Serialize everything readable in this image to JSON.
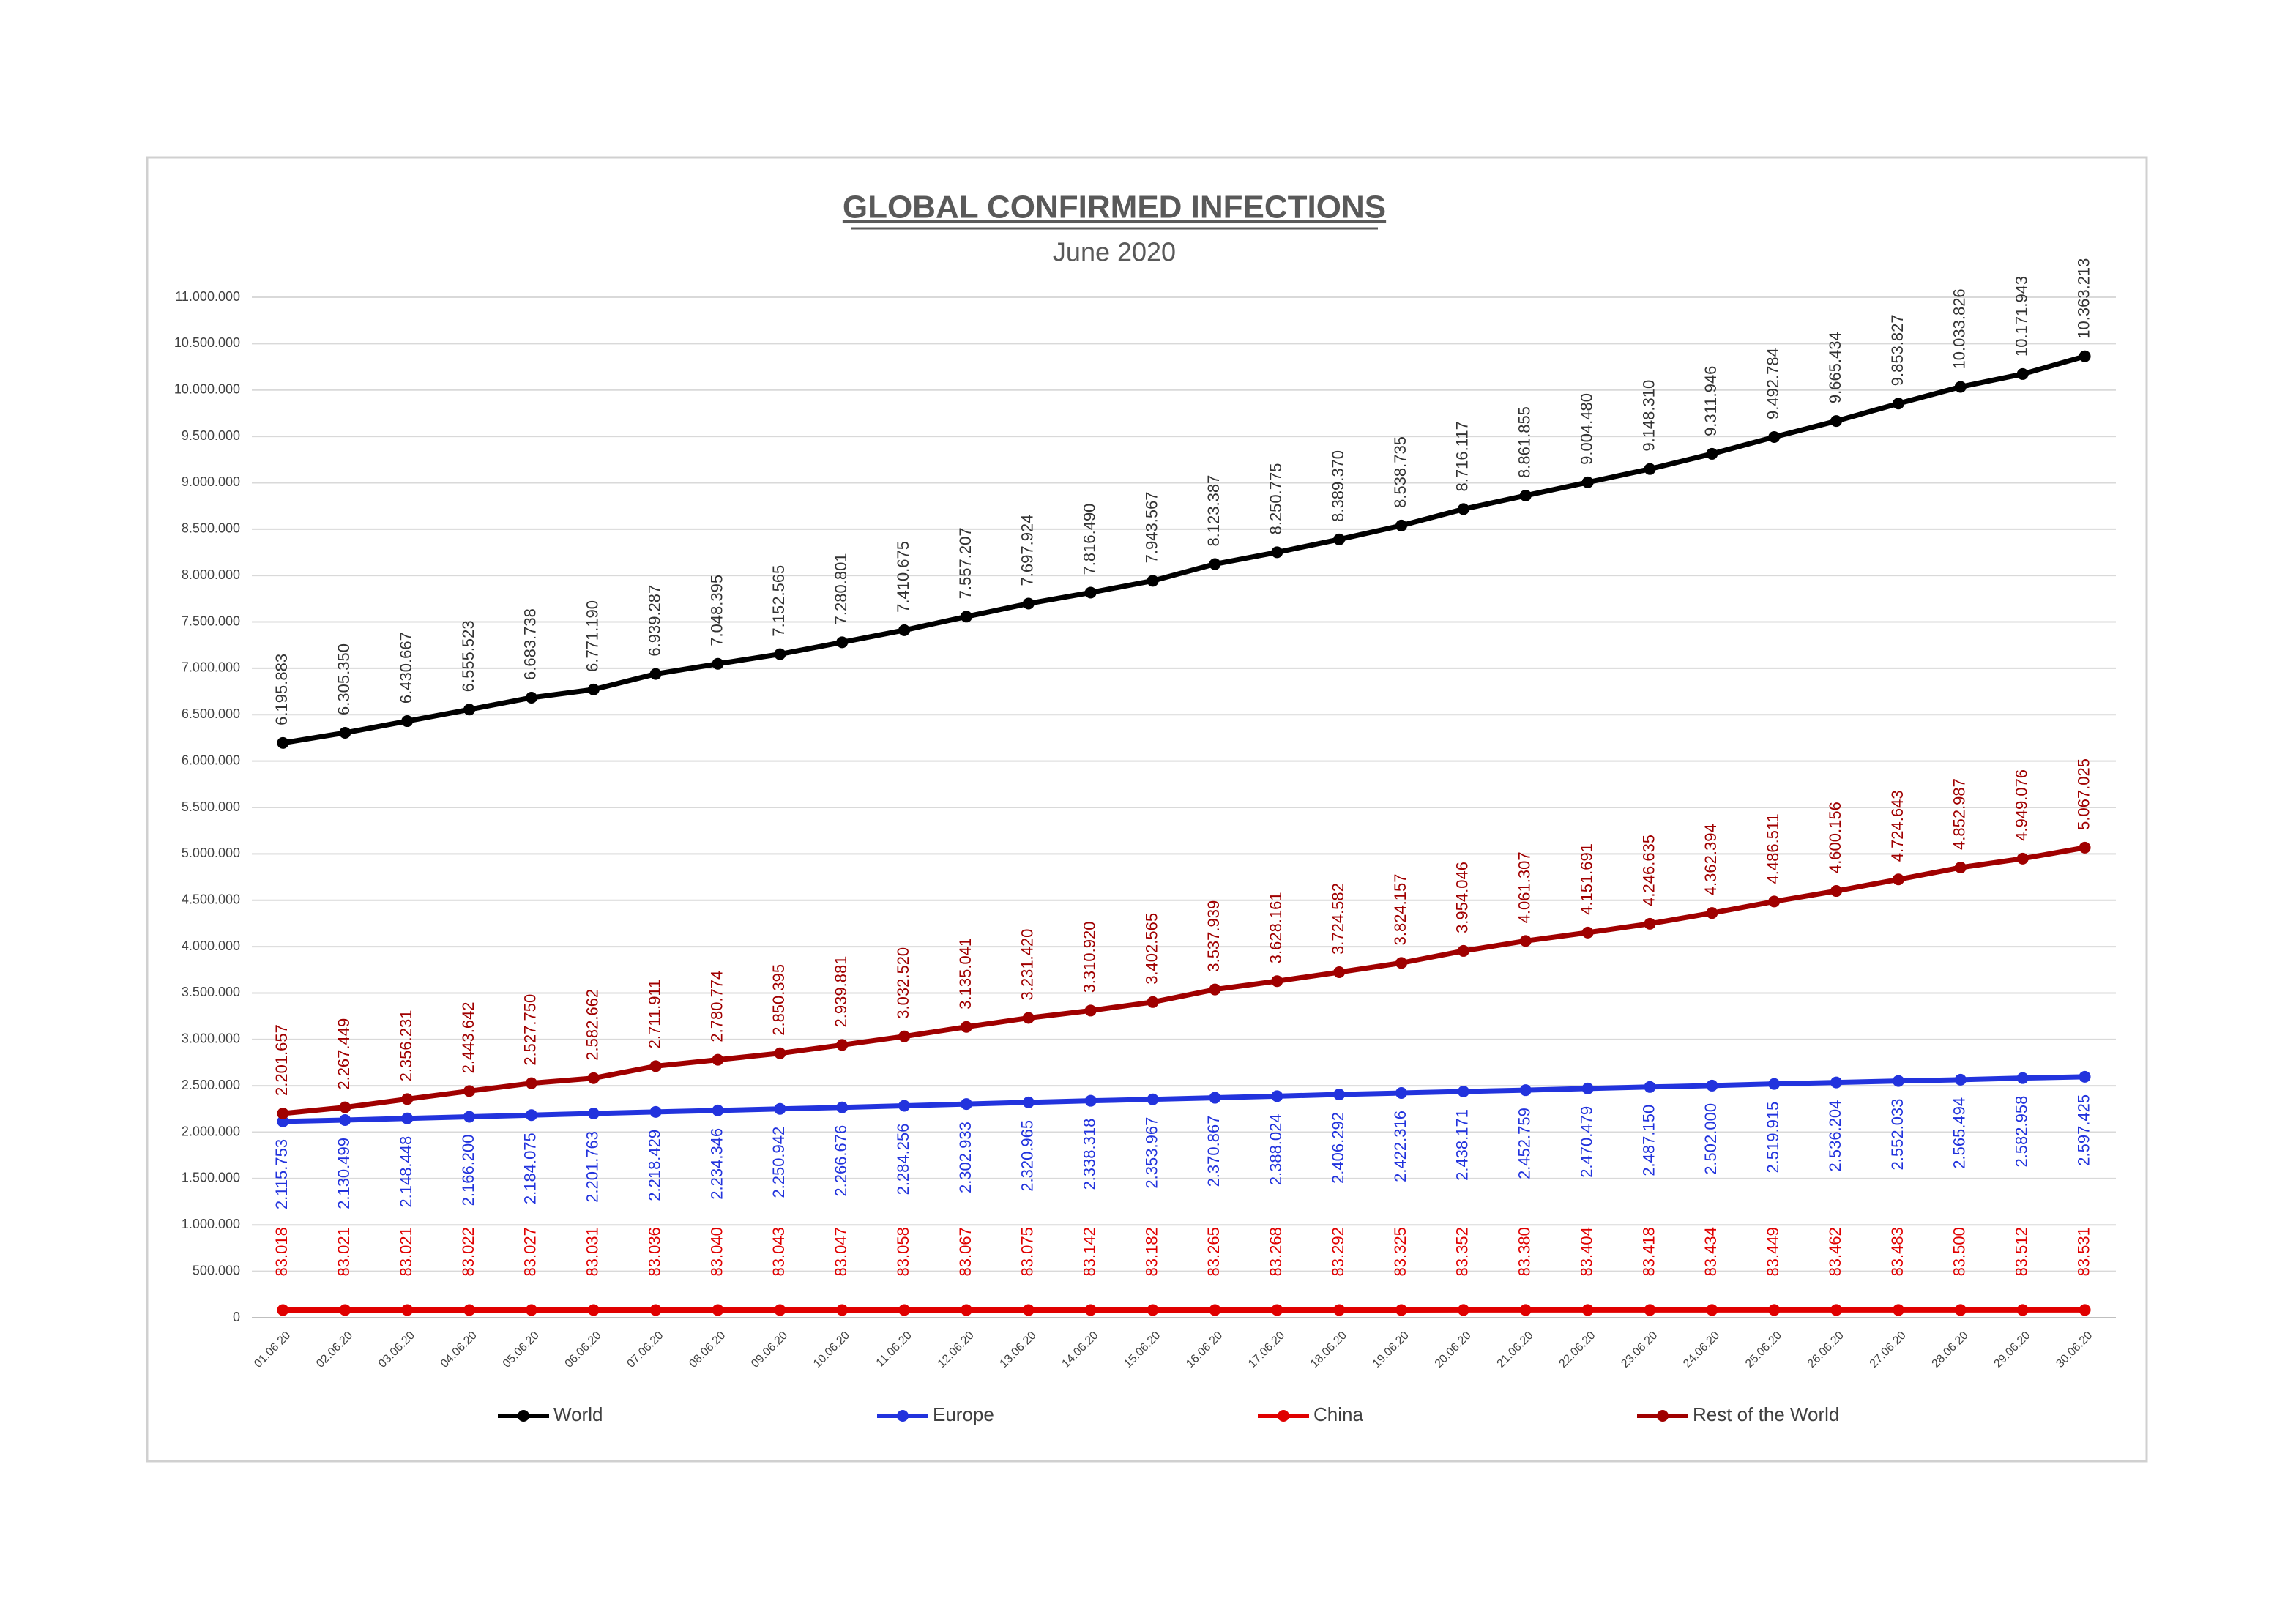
{
  "chart_data": {
    "type": "line",
    "title": "GLOBAL CONFIRMED INFECTIONS",
    "subtitle": "June 2020",
    "categories": [
      "01.06.20",
      "02.06.20",
      "03.06.20",
      "04.06.20",
      "05.06.20",
      "06.06.20",
      "07.06.20",
      "08.06.20",
      "09.06.20",
      "10.06.20",
      "11.06.20",
      "12.06.20",
      "13.06.20",
      "14.06.20",
      "15.06.20",
      "16.06.20",
      "17.06.20",
      "18.06.20",
      "19.06.20",
      "20.06.20",
      "21.06.20",
      "22.06.20",
      "23.06.20",
      "24.06.20",
      "25.06.20",
      "26.06.20",
      "27.06.20",
      "28.06.20",
      "29.06.20",
      "30.06.20"
    ],
    "ylim": [
      0,
      11000000
    ],
    "yticks": [
      0,
      {
        "value": 500000,
        "label": "500.000"
      },
      {
        "value": 1000000,
        "label": "1.000.000"
      },
      {
        "value": 1500000,
        "label": "1.500.000"
      },
      {
        "value": 2000000,
        "label": "2.000.000"
      },
      {
        "value": 2500000,
        "label": "2.500.000"
      },
      {
        "value": 3000000,
        "label": "3.000.000"
      },
      {
        "value": 3500000,
        "label": "3.500.000"
      },
      {
        "value": 4000000,
        "label": "4.000.000"
      },
      {
        "value": 4500000,
        "label": "4.500.000"
      },
      {
        "value": 5000000,
        "label": "5.000.000"
      },
      {
        "value": 5500000,
        "label": "5.500.000"
      },
      {
        "value": 6000000,
        "label": "6.000.000"
      },
      {
        "value": 6500000,
        "label": "6.500.000"
      },
      {
        "value": 7000000,
        "label": "7.000.000"
      },
      {
        "value": 7500000,
        "label": "7.500.000"
      },
      {
        "value": 8000000,
        "label": "8.000.000"
      },
      {
        "value": 8500000,
        "label": "8.500.000"
      },
      {
        "value": 9000000,
        "label": "9.000.000"
      },
      {
        "value": 9500000,
        "label": "9.500.000"
      },
      {
        "value": 10000000,
        "label": "10.000.000"
      },
      {
        "value": 10500000,
        "label": "10.500.000"
      },
      {
        "value": 11000000,
        "label": "11.000.000"
      }
    ],
    "grid": true,
    "legend": "bottom",
    "series": [
      {
        "name": "World",
        "color": "#000000",
        "values": [
          6195883,
          6305350,
          6430667,
          6555523,
          6683738,
          6771190,
          6939287,
          7048395,
          7152565,
          7280801,
          7410675,
          7557207,
          7697924,
          7816490,
          7943567,
          8123387,
          8250775,
          8389370,
          8538735,
          8716117,
          8861855,
          9004480,
          9148310,
          9311946,
          9492784,
          9665434,
          9853827,
          10033826,
          10171943,
          10363213
        ],
        "value_labels": [
          "6.195.883",
          "6.305.350",
          "6.430.667",
          "6.555.523",
          "6.683.738",
          "6.771.190",
          "6.939.287",
          "7.048.395",
          "7.152.565",
          "7.280.801",
          "7.410.675",
          "7.557.207",
          "7.697.924",
          "7.816.490",
          "7.943.567",
          "8.123.387",
          "8.250.775",
          "8.389.370",
          "8.538.735",
          "8.716.117",
          "8.861.855",
          "9.004.480",
          "9.148.310",
          "9.311.946",
          "9.492.784",
          "9.665.434",
          "9.853.827",
          "10.033.826",
          "10.171.943",
          "10.363.213"
        ]
      },
      {
        "name": "Europe",
        "color": "#2233dd",
        "values": [
          2115753,
          2130499,
          2148448,
          2166200,
          2184075,
          2201763,
          2218429,
          2234346,
          2250942,
          2266676,
          2284256,
          2302933,
          2320965,
          2338318,
          2353967,
          2370867,
          2388024,
          2406292,
          2422316,
          2438171,
          2452759,
          2470479,
          2487150,
          2502000,
          2519915,
          2536204,
          2552033,
          2565494,
          2582958,
          2597425
        ],
        "value_labels": [
          "2.115.753",
          "2.130.499",
          "2.148.448",
          "2.166.200",
          "2.184.075",
          "2.201.763",
          "2.218.429",
          "2.234.346",
          "2.250.942",
          "2.266.676",
          "2.284.256",
          "2.302.933",
          "2.320.965",
          "2.338.318",
          "2.353.967",
          "2.370.867",
          "2.388.024",
          "2.406.292",
          "2.422.316",
          "2.438.171",
          "2.452.759",
          "2.470.479",
          "2.487.150",
          "2.502.000",
          "2.519.915",
          "2.536.204",
          "2.552.033",
          "2.565.494",
          "2.582.958",
          "2.597.425"
        ]
      },
      {
        "name": "China",
        "color": "#e00000",
        "values": [
          83018,
          83021,
          83021,
          83022,
          83027,
          83031,
          83036,
          83040,
          83043,
          83047,
          83058,
          83067,
          83075,
          83142,
          83182,
          83265,
          83268,
          83292,
          83325,
          83352,
          83380,
          83404,
          83418,
          83434,
          83449,
          83462,
          83483,
          83500,
          83512,
          83531
        ],
        "value_labels": [
          "83.018",
          "83.021",
          "83.021",
          "83.022",
          "83.027",
          "83.031",
          "83.036",
          "83.040",
          "83.043",
          "83.047",
          "83.058",
          "83.067",
          "83.075",
          "83.142",
          "83.182",
          "83.265",
          "83.268",
          "83.292",
          "83.325",
          "83.352",
          "83.380",
          "83.404",
          "83.418",
          "83.434",
          "83.449",
          "83.462",
          "83.483",
          "83.500",
          "83.512",
          "83.531"
        ]
      },
      {
        "name": "Rest of the World",
        "color": "#a00000",
        "values": [
          2201657,
          2267449,
          2356231,
          2443642,
          2527750,
          2582662,
          2711911,
          2780774,
          2850395,
          2939881,
          3032520,
          3135041,
          3231420,
          3310920,
          3402565,
          3537939,
          3628161,
          3724582,
          3824157,
          3954046,
          4061307,
          4151691,
          4246635,
          4362394,
          4486511,
          4600156,
          4724643,
          4852987,
          4949076,
          5067025
        ],
        "value_labels": [
          "2.201.657",
          "2.267.449",
          "2.356.231",
          "2.443.642",
          "2.527.750",
          "2.582.662",
          "2.711.911",
          "2.780.774",
          "2.850.395",
          "2.939.881",
          "3.032.520",
          "3.135.041",
          "3.231.420",
          "3.310.920",
          "3.402.565",
          "3.537.939",
          "3.628.161",
          "3.724.582",
          "3.824.157",
          "3.954.046",
          "4.061.307",
          "4.151.691",
          "4.246.635",
          "4.362.394",
          "4.486.511",
          "4.600.156",
          "4.724.643",
          "4.852.987",
          "4.949.076",
          "5.067.025"
        ]
      }
    ]
  }
}
